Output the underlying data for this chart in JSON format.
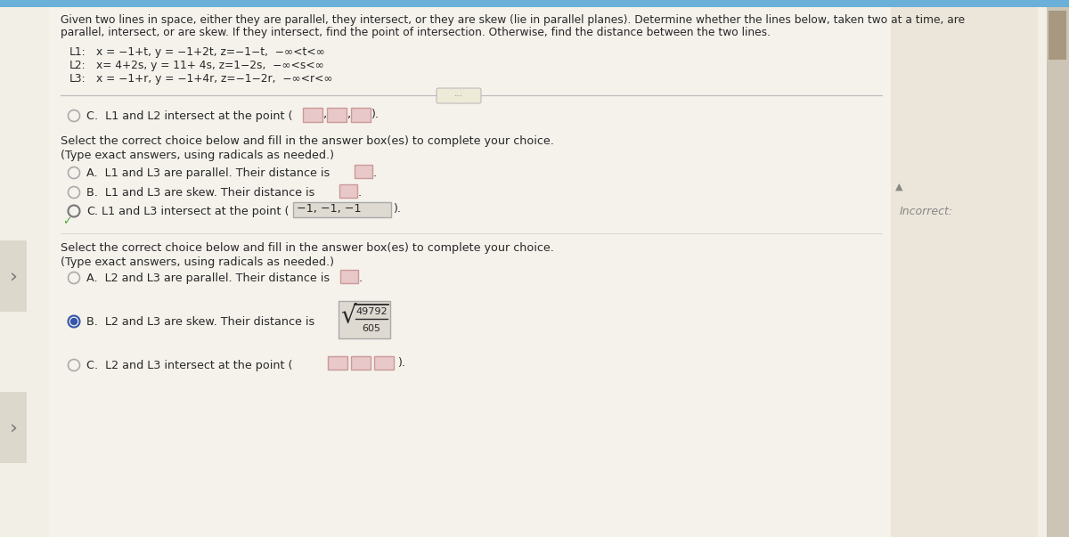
{
  "bg_main": "#f2efe6",
  "bg_right_panel": "#e8e2d8",
  "bg_header": "#5ba4c8",
  "scrollbar_color": "#c8bfb0",
  "scrollbar_thumb": "#a89888",
  "nav_arrow_bg": "#ddd8cc",
  "divider_color": "#bbbbbb",
  "text_dark": "#222222",
  "text_medium": "#444444",
  "text_light": "#888888",
  "radio_stroke": "#aaaaaa",
  "radio_selected_stroke": "#555588",
  "radio_fill": "#5577bb",
  "box_fill_pink": "#e8c8c8",
  "box_border_pink": "#cc9999",
  "box_fill_answer": "#dedad2",
  "box_border_answer": "#aaaaaa",
  "checkmark_color": "#44aa33",
  "incorrect_color": "#999999",
  "title_line1": "Given two lines in space, either they are parallel, they intersect, or they are skew (lie in parallel planes). Determine whether the lines below, taken two at a time, are",
  "title_line2": "parallel, intersect, or are skew. If they intersect, find the point of intersection. Otherwise, find the distance between the two lines.",
  "l1_label": "L1:",
  "l1_eq": "x = −1+t, y = −1+2t, z=−1−t,  −∞<t<∞",
  "l2_label": "L2:",
  "l2_eq": "x= 4+2s, y = 11+ 4s, z=1−2s,  −∞<s<∞",
  "l3_label": "L3:",
  "l3_eq": "x = −1+r, y = −1+4r, z=−1−2r,  −∞<r<∞",
  "section_c_l1l2": "C.  L1 and L2 intersect at the point (",
  "select_instruction": "Select the correct choice below and fill in the answer box(es) to complete your choice.",
  "type_instruction": "(Type exact answers, using radicals as needed.)",
  "optA_l1l3": "A.  L1 and L3 are parallel. Their distance is",
  "optB_l1l3": "B.  L1 and L3 are skew. Their distance is",
  "optC_l1l3_pre": "C.",
  "optC_l1l3_text": "L1 and L3 intersect at the point (",
  "optC_l1l3_answer": "−1, −1, −1",
  "incorrect_label": "Incorrect:",
  "select_instruction2": "Select the correct choice below and fill in the answer box(es) to complete your choice.",
  "type_instruction2": "(Type exact answers, using radicals as needed.)",
  "optA_l2l3": "A.  L2 and L3 are parallel. Their distance is",
  "optB_l2l3_pre": "B.  L2 and L3 are skew. Their distance is",
  "fraction_num": "49792",
  "fraction_den": "605",
  "optC_l2l3": "C.  L2 and L3 intersect at the point ("
}
